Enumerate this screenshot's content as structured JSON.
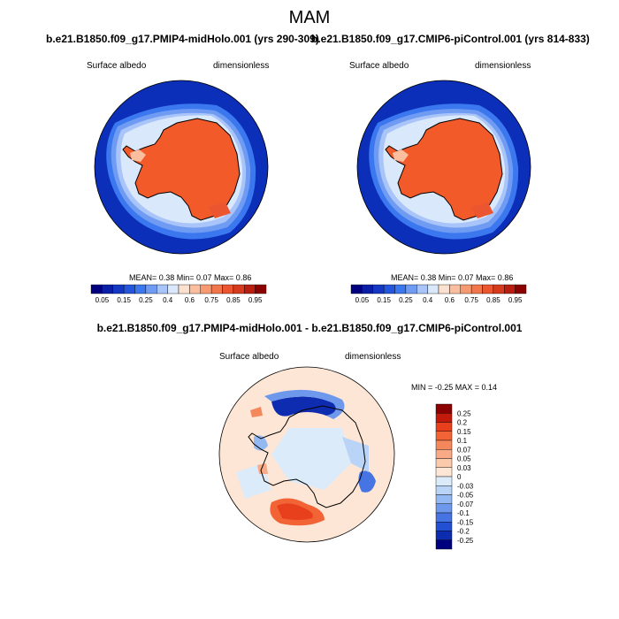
{
  "header": {
    "season": "MAM",
    "left_case": "b.e21.B1850.f09_g17.PMIP4-midHolo.001 (yrs 290-309)",
    "right_case": "b.e21.B1850.f09_g17.CMIP6-piControl.001 (yrs 814-833)",
    "diff_title": "b.e21.B1850.f09_g17.PMIP4-midHolo.001 - b.e21.B1850.f09_g17.CMIP6-piControl.001"
  },
  "panels": {
    "left": {
      "variable": "Surface albedo",
      "units": "dimensionless",
      "stats_text": "MEAN=  0.38  Min=  0.07  Max=  0.86"
    },
    "right": {
      "variable": "Surface albedo",
      "units": "dimensionless",
      "stats_text": "MEAN=  0.38  Min=  0.07  Max=  0.86"
    },
    "diff": {
      "variable": "Surface albedo",
      "units": "dimensionless",
      "stats_text": "MIN =  -0.25 MAX =   0.14"
    }
  },
  "colors": {
    "ocean_dark": "#0b2fb8",
    "antarctica": "#f25a2a",
    "diff_background": "#dcebfa"
  },
  "chart_data": [
    {
      "type": "heatmap",
      "title": "b.e21.B1850.f09_g17.PMIP4-midHolo.001 (yrs 290-309)",
      "variable": "Surface albedo",
      "units": "dimensionless",
      "projection": "south polar stereographic",
      "mean": 0.38,
      "min": 0.07,
      "max": 0.86,
      "colorbar_levels": [
        0.05,
        0.1,
        0.15,
        0.2,
        0.25,
        0.3,
        0.4,
        0.5,
        0.6,
        0.7,
        0.75,
        0.8,
        0.85,
        0.9,
        0.95
      ],
      "colorbar_tick_labels": [
        "0.05",
        "0.15",
        "0.25",
        "0.4",
        "0.6",
        "0.75",
        "0.85",
        "0.95"
      ],
      "colorbar_colors": [
        "#00007f",
        "#0b1fa6",
        "#1438c4",
        "#2456dd",
        "#3b77ee",
        "#6f9bf3",
        "#a8c4f8",
        "#d9e8fb",
        "#fde1d0",
        "#fbbe9f",
        "#f79a72",
        "#f2764c",
        "#eb5530",
        "#d63b1d",
        "#b81f10",
        "#8b0000"
      ]
    },
    {
      "type": "heatmap",
      "title": "b.e21.B1850.f09_g17.CMIP6-piControl.001 (yrs 814-833)",
      "variable": "Surface albedo",
      "units": "dimensionless",
      "projection": "south polar stereographic",
      "mean": 0.38,
      "min": 0.07,
      "max": 0.86,
      "colorbar_levels": [
        0.05,
        0.1,
        0.15,
        0.2,
        0.25,
        0.3,
        0.4,
        0.5,
        0.6,
        0.7,
        0.75,
        0.8,
        0.85,
        0.9,
        0.95
      ],
      "colorbar_tick_labels": [
        "0.05",
        "0.15",
        "0.25",
        "0.4",
        "0.6",
        "0.75",
        "0.85",
        "0.95"
      ],
      "colorbar_colors": [
        "#00007f",
        "#0b1fa6",
        "#1438c4",
        "#2456dd",
        "#3b77ee",
        "#6f9bf3",
        "#a8c4f8",
        "#d9e8fb",
        "#fde1d0",
        "#fbbe9f",
        "#f79a72",
        "#f2764c",
        "#eb5530",
        "#d63b1d",
        "#b81f10",
        "#8b0000"
      ]
    },
    {
      "type": "heatmap",
      "title": "b.e21.B1850.f09_g17.PMIP4-midHolo.001 - b.e21.B1850.f09_g17.CMIP6-piControl.001",
      "variable": "Surface albedo",
      "units": "dimensionless",
      "projection": "south polar stereographic",
      "min": -0.25,
      "max": 0.14,
      "colorbar_levels": [
        0.25,
        0.2,
        0.15,
        0.1,
        0.07,
        0.05,
        0.03,
        0,
        -0.03,
        -0.05,
        -0.07,
        -0.1,
        -0.15,
        -0.2,
        -0.25
      ],
      "colorbar_tick_labels": [
        "0.25",
        "0.2",
        "0.15",
        "0.1",
        "0.07",
        "0.05",
        "0.03",
        "0",
        "-0.03",
        "-0.05",
        "-0.07",
        "-0.1",
        "-0.15",
        "-0.2",
        "-0.25"
      ],
      "colorbar_colors": [
        "#8b0000",
        "#c41a0c",
        "#e8401c",
        "#f26436",
        "#f5875c",
        "#f8a985",
        "#fbc9ac",
        "#fde6d6",
        "#dcebfa",
        "#b9d4f6",
        "#94b8f2",
        "#6e98ec",
        "#4674e3",
        "#2350d2",
        "#0e2cb0",
        "#00007f"
      ]
    }
  ]
}
